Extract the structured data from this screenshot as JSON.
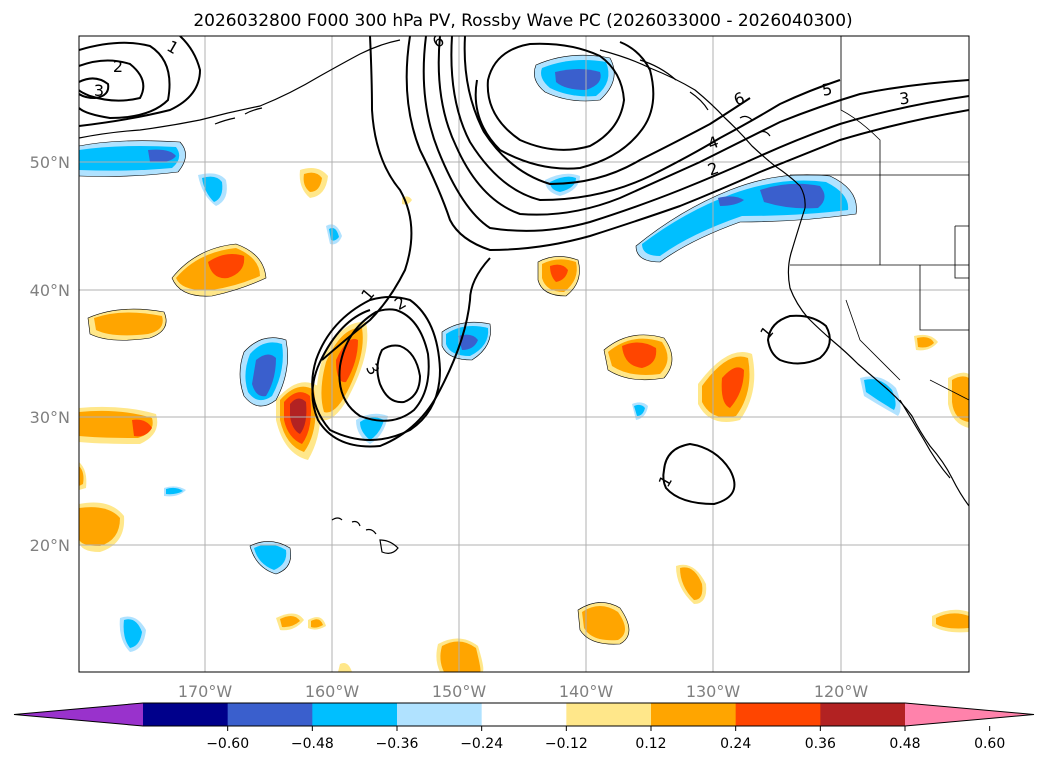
{
  "title": "2026032800 F000 300 hPa PV, Rossby Wave PC (2026033000 - 2026040300)",
  "lon_labels": [
    "170°W",
    "160°W",
    "150°W",
    "140°W",
    "130°W",
    "120°W"
  ],
  "lat_labels": [
    "50°N",
    "40°N",
    "30°N",
    "20°N"
  ],
  "colorbar": {
    "colors": [
      "#9932cc",
      "#00008b",
      "#3a5fcd",
      "#00bfff",
      "#b0e2ff",
      "#ffffff",
      "#ffe78a",
      "#ffa500",
      "#ff4500",
      "#b22222",
      "#ff82ab"
    ],
    "ticks": [
      "−0.60",
      "−0.48",
      "−0.36",
      "−0.24",
      "−0.12",
      "0.12",
      "0.24",
      "0.36",
      "0.48",
      "0.60"
    ]
  },
  "contour_labels": [
    "1",
    "2",
    "3",
    "6",
    "5",
    "3",
    "4",
    "2",
    "1",
    "2",
    "3",
    "1",
    "1",
    "6"
  ],
  "palette": {
    "neg1": "#b0e2ff",
    "neg2": "#00bfff",
    "neg3": "#3a5fcd",
    "pos1": "#ffe78a",
    "pos2": "#ffa500",
    "pos3": "#ff4500",
    "pos4": "#b22222"
  }
}
